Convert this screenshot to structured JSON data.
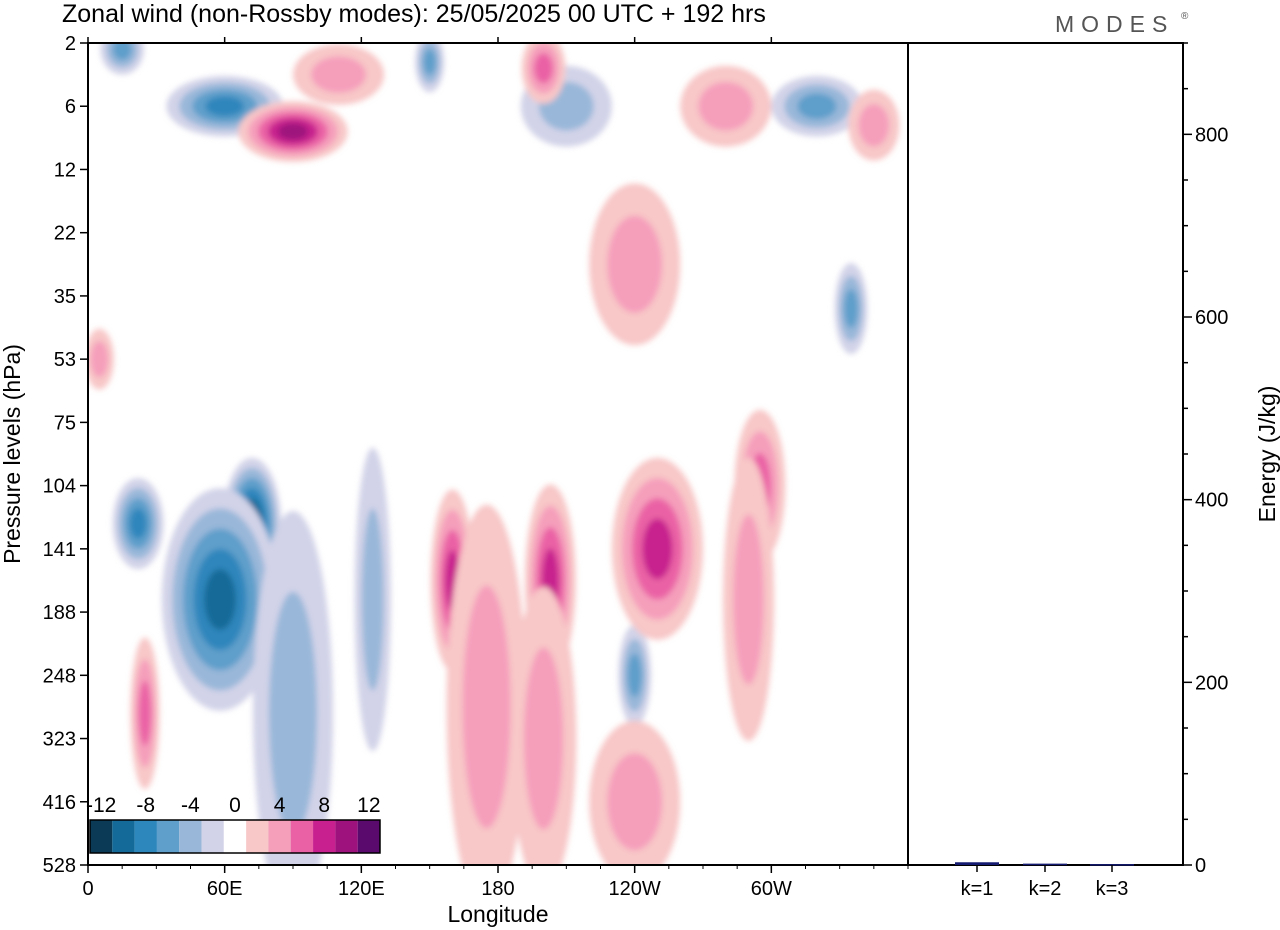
{
  "title": "Zonal wind (non-Rossby modes):  25/05/2025  00 UTC  + 192 hrs",
  "logo": "MODES",
  "logo_mark": "®",
  "colors": {
    "levels": [
      "#0b3a56",
      "#146a98",
      "#2d86bc",
      "#5f9fcb",
      "#99b7d9",
      "#d2d3e8",
      "#ffffff",
      "#f8c7c7",
      "#f59fbb",
      "#ea62a5",
      "#c8208e",
      "#9e127d",
      "#5a0a6c"
    ],
    "frame": "#000000",
    "bar": "#141a70"
  },
  "chart_data": [
    {
      "type": "heatmap",
      "variable": "Zonal wind (non-Rossby modes)",
      "xlabel": "Longitude",
      "ylabel": "Pressure levels (hPa)",
      "x_range_deg": [
        0,
        360
      ],
      "x_ticks": [
        {
          "deg": 0,
          "label": "0"
        },
        {
          "deg": 60,
          "label": "60E"
        },
        {
          "deg": 120,
          "label": "120E"
        },
        {
          "deg": 180,
          "label": "180"
        },
        {
          "deg": 240,
          "label": "120W"
        },
        {
          "deg": 300,
          "label": "60W"
        }
      ],
      "y_ticks": [
        "2",
        "6",
        "12",
        "22",
        "35",
        "53",
        "75",
        "104",
        "141",
        "188",
        "248",
        "323",
        "416",
        "528"
      ],
      "colorbar": {
        "tick_labels": [
          "-12",
          "-8",
          "-4",
          "0",
          "4",
          "8",
          "12"
        ]
      },
      "features": [
        {
          "lon": 55,
          "level_index": 8.4,
          "value": -14,
          "lon_width": 22,
          "level_width": 1.4
        },
        {
          "lon": 72,
          "level_index": 7.6,
          "value": -12,
          "lon_width": 16,
          "level_width": 1.3
        },
        {
          "lon": 58,
          "level_index": 8.8,
          "value": -10,
          "lon_width": 32,
          "level_width": 2.2
        },
        {
          "lon": 22,
          "level_index": 7.6,
          "value": -7,
          "lon_width": 14,
          "level_width": 0.9
        },
        {
          "lon": 90,
          "level_index": 10.6,
          "value": -3,
          "lon_width": 22,
          "level_width": 4.0
        },
        {
          "lon": 125,
          "level_index": 8.8,
          "value": -3,
          "lon_width": 10,
          "level_width": 3.0
        },
        {
          "lon": 240,
          "level_index": 10.0,
          "value": -5,
          "lon_width": 9,
          "level_width": 1.0
        },
        {
          "lon": 335,
          "level_index": 4.2,
          "value": -5,
          "lon_width": 9,
          "level_width": 0.9
        },
        {
          "lon": 60,
          "level_index": 1.0,
          "value": -7,
          "lon_width": 32,
          "level_width": 0.6
        },
        {
          "lon": 150,
          "level_index": 0.3,
          "value": -6,
          "lon_width": 8,
          "level_width": 0.6
        },
        {
          "lon": 320,
          "level_index": 1.0,
          "value": -5,
          "lon_width": 25,
          "level_width": 0.6
        },
        {
          "lon": 15,
          "level_index": 0.1,
          "value": -5,
          "lon_width": 12,
          "level_width": 0.5
        },
        {
          "lon": 210,
          "level_index": 1.0,
          "value": -3,
          "lon_width": 25,
          "level_width": 0.8
        },
        {
          "lon": 90,
          "level_index": 1.4,
          "value": 9,
          "lon_width": 30,
          "level_width": 0.6
        },
        {
          "lon": 110,
          "level_index": 0.5,
          "value": 4,
          "lon_width": 25,
          "level_width": 0.6
        },
        {
          "lon": 200,
          "level_index": 0.4,
          "value": 5,
          "lon_width": 12,
          "level_width": 0.7
        },
        {
          "lon": 250,
          "level_index": 8.0,
          "value": 8,
          "lon_width": 25,
          "level_width": 1.8
        },
        {
          "lon": 203,
          "level_index": 8.5,
          "value": 8,
          "lon_width": 14,
          "level_width": 1.9
        },
        {
          "lon": 160,
          "level_index": 8.5,
          "value": 7,
          "lon_width": 12,
          "level_width": 1.8
        },
        {
          "lon": 175,
          "level_index": 10.5,
          "value": 4,
          "lon_width": 22,
          "level_width": 4.0
        },
        {
          "lon": 200,
          "level_index": 11.0,
          "value": 3,
          "lon_width": 18,
          "level_width": 3.0
        },
        {
          "lon": 240,
          "level_index": 12.0,
          "value": 3,
          "lon_width": 25,
          "level_width": 1.6
        },
        {
          "lon": 295,
          "level_index": 7.0,
          "value": 6,
          "lon_width": 14,
          "level_width": 1.5
        },
        {
          "lon": 290,
          "level_index": 8.8,
          "value": 4,
          "lon_width": 14,
          "level_width": 2.8
        },
        {
          "lon": 25,
          "level_index": 10.6,
          "value": 6,
          "lon_width": 8,
          "level_width": 1.5
        },
        {
          "lon": 5,
          "level_index": 5.0,
          "value": 4,
          "lon_width": 8,
          "level_width": 0.6
        },
        {
          "lon": 240,
          "level_index": 3.5,
          "value": 3,
          "lon_width": 25,
          "level_width": 1.6
        },
        {
          "lon": 280,
          "level_index": 1.0,
          "value": 3,
          "lon_width": 25,
          "level_width": 0.8
        },
        {
          "lon": 345,
          "level_index": 1.3,
          "value": 3,
          "lon_width": 14,
          "level_width": 0.7
        }
      ]
    },
    {
      "type": "bar",
      "ylabel": "Energy (J/kg)",
      "ylim": [
        0,
        900
      ],
      "y_ticks": [
        0,
        200,
        400,
        600,
        800
      ],
      "categories": [
        "k=1",
        "k=2",
        "k=3"
      ],
      "values": [
        3,
        1.5,
        1
      ]
    }
  ]
}
